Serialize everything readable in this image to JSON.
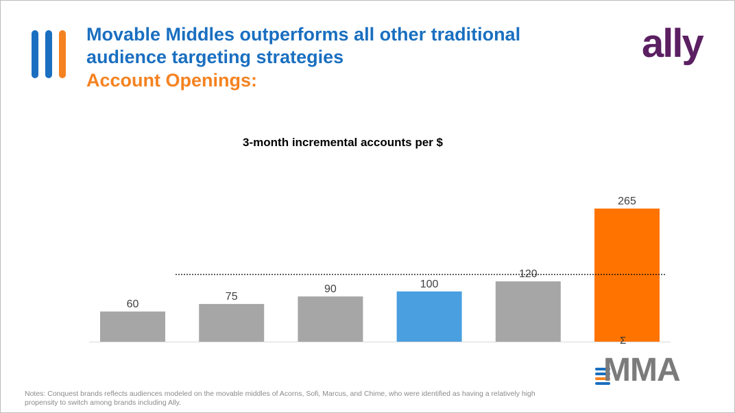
{
  "header": {
    "title": "Movable Middles outperforms all other traditional audience targeting strategies",
    "subtitle": "Account Openings:"
  },
  "logos": {
    "ally": "ally",
    "mma": "MMA",
    "sigma": "Σ"
  },
  "colors": {
    "gray": "#a6a6a6",
    "blue": "#4a9fe0",
    "orange": "#ff7400",
    "brand_blue": "#1a6fc0",
    "brand_orange": "#f58220"
  },
  "chart_data": {
    "type": "bar",
    "title": "3-month incremental accounts per $",
    "categories": [
      "",
      "",
      "",
      "",
      "",
      ""
    ],
    "values": [
      60,
      75,
      90,
      100,
      120,
      265
    ],
    "bar_colors": [
      "#a6a6a6",
      "#a6a6a6",
      "#a6a6a6",
      "#4a9fe0",
      "#a6a6a6",
      "#ff7400"
    ],
    "reference_line": 120,
    "ylim": [
      0,
      300
    ],
    "xlabel": "",
    "ylabel": "",
    "grid": false
  },
  "notes": "Notes: Conquest brands reflects audiences modeled on the movable middles of Acorns, Sofi, Marcus, and Chime, who were identified as having a relatively high propensity to switch among brands including Ally."
}
